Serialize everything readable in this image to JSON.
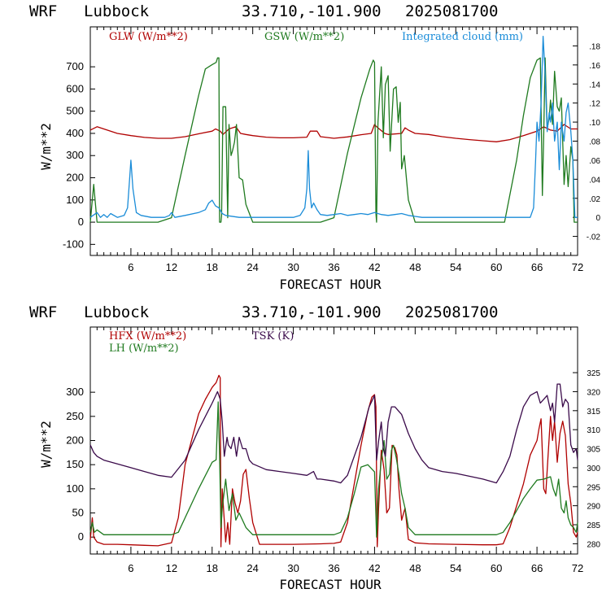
{
  "header": {
    "model": "WRF",
    "location": "Lubbock",
    "coords": "33.710,-101.900",
    "init": "2025081700"
  },
  "chart_data": [
    {
      "type": "line",
      "xlabel": "FORECAST HOUR",
      "ylabel": "W/m**2",
      "xlim": [
        0,
        72
      ],
      "ylim": [
        -150,
        880
      ],
      "x_ticks": [
        6,
        12,
        18,
        24,
        30,
        36,
        42,
        48,
        54,
        60,
        66,
        72
      ],
      "x_tick_labels": [
        "6",
        "12",
        "18",
        "24",
        "30",
        "36",
        "42",
        "48",
        "54",
        "60",
        "66",
        "72"
      ],
      "y_ticks": [
        -100,
        0,
        100,
        200,
        300,
        400,
        500,
        600,
        700
      ],
      "y_tick_labels": [
        "-100",
        "0",
        "100",
        "200",
        "300",
        "400",
        "500",
        "600",
        "700"
      ],
      "y2lim": [
        -0.04,
        0.2
      ],
      "y2_ticks": [
        -0.02,
        0,
        0.02,
        0.04,
        0.06,
        0.08,
        0.1,
        0.12,
        0.14,
        0.16,
        0.18
      ],
      "y2_tick_labels": [
        "-.02",
        "0",
        ".02",
        ".04",
        ".06",
        ".08",
        ".10",
        ".12",
        ".14",
        ".16",
        ".18"
      ],
      "grid": false,
      "legend_position": "top",
      "series": [
        {
          "name": "GLW (W/m**2)",
          "color": "#b00000",
          "axis": "left",
          "x": [
            0,
            1,
            2,
            4,
            6,
            8,
            10,
            12,
            14,
            16,
            18,
            18.5,
            19.2,
            19.6,
            20.5,
            21.5,
            22.2,
            23,
            24,
            26,
            28,
            30,
            32,
            32.5,
            33.5,
            34,
            36,
            38,
            40,
            41.5,
            42,
            42.3,
            43.5,
            44,
            46,
            46.5,
            47,
            48,
            50,
            52,
            54,
            56,
            58,
            60,
            62,
            64,
            66,
            67,
            68,
            69,
            70,
            71,
            72
          ],
          "y": [
            415,
            430,
            420,
            400,
            390,
            382,
            378,
            378,
            385,
            398,
            410,
            420,
            410,
            395,
            420,
            430,
            400,
            395,
            390,
            383,
            380,
            380,
            383,
            410,
            410,
            385,
            378,
            384,
            394,
            400,
            440,
            430,
            400,
            395,
            400,
            425,
            415,
            400,
            395,
            385,
            378,
            372,
            367,
            362,
            372,
            390,
            410,
            430,
            415,
            410,
            440,
            420,
            420
          ]
        },
        {
          "name": "GSW (W/m**2)",
          "color": "#1f7a1f",
          "axis": "left",
          "x": [
            0,
            0.5,
            1,
            6,
            7.4,
            10,
            12,
            14,
            16,
            17,
            18,
            18.6,
            18.8,
            19.0,
            19.1,
            19.3,
            19.4,
            19.6,
            20,
            20.3,
            20.5,
            20.8,
            21.0,
            21.3,
            21.6,
            22.0,
            22.5,
            23.0,
            24.0,
            24.5,
            30,
            31.6,
            34,
            36,
            38,
            40,
            41.3,
            41.8,
            42.0,
            42.2,
            42.3,
            42.5,
            43.0,
            43.3,
            43.6,
            44,
            44.3,
            44.8,
            45.2,
            45.5,
            45.8,
            46.0,
            46.4,
            47,
            48,
            49,
            49.5,
            55,
            60,
            61.2,
            63,
            64,
            65,
            66,
            66.5,
            66.8,
            67.0,
            67.2,
            67.5,
            67.8,
            68.0,
            68.3,
            68.6,
            69.0,
            69.3,
            69.6,
            70.0,
            70.3,
            70.6,
            71.0,
            71.3,
            71.5,
            71.8,
            72
          ],
          "y": [
            0,
            170,
            0,
            0,
            0,
            0,
            20,
            300,
            570,
            690,
            710,
            720,
            740,
            740,
            0,
            0,
            30,
            520,
            520,
            20,
            440,
            300,
            320,
            360,
            440,
            200,
            190,
            80,
            0,
            0,
            0,
            0,
            0,
            20,
            310,
            560,
            690,
            730,
            720,
            40,
            0,
            450,
            700,
            380,
            620,
            660,
            320,
            600,
            610,
            450,
            540,
            240,
            300,
            100,
            0,
            0,
            0,
            0,
            0,
            0,
            280,
            480,
            650,
            730,
            740,
            120,
            400,
            740,
            420,
            470,
            550,
            440,
            680,
            520,
            500,
            560,
            170,
            300,
            160,
            340,
            280,
            0,
            0,
            0
          ]
        },
        {
          "name": "Integrated cloud (mm)",
          "color": "#1a8cd8",
          "axis": "right",
          "x": [
            0,
            1,
            1.5,
            2,
            2.5,
            3,
            4,
            5,
            5.5,
            5.8,
            6.0,
            6.3,
            6.8,
            7.5,
            9,
            11,
            11.7,
            12,
            12.5,
            14,
            16,
            17,
            17.5,
            18,
            18.5,
            19,
            19.5,
            20,
            22,
            24,
            26,
            28,
            30,
            31,
            31.7,
            32.0,
            32.2,
            32.4,
            32.7,
            33,
            33.5,
            34,
            35,
            36,
            37,
            38,
            39,
            40,
            41,
            42,
            43,
            44,
            45,
            46,
            47,
            48,
            49,
            50,
            54,
            58,
            62,
            65,
            65.5,
            65.8,
            66.0,
            66.3,
            66.6,
            66.9,
            67.2,
            67.5,
            67.8,
            68.0,
            68.3,
            68.6,
            69.0,
            69.3,
            69.6,
            70.0,
            70.3,
            70.6,
            71.0,
            71.3,
            71.6,
            72
          ],
          "y": [
            0,
            0.005,
            0,
            0.003,
            0,
            0.004,
            0,
            0.002,
            0.01,
            0.04,
            0.06,
            0.03,
            0.005,
            0.002,
            0,
            0,
            0.002,
            0.005,
            0,
            0.002,
            0.005,
            0.008,
            0.015,
            0.018,
            0.012,
            0.01,
            0.004,
            0.002,
            0,
            0,
            0,
            0,
            0,
            0.002,
            0.01,
            0.03,
            0.07,
            0.03,
            0.01,
            0.015,
            0.008,
            0.003,
            0.002,
            0.003,
            0.004,
            0.002,
            0.003,
            0.004,
            0.003,
            0.005,
            0.003,
            0.002,
            0.003,
            0.004,
            0.002,
            0.001,
            0,
            0,
            0,
            0,
            0,
            0,
            0.01,
            0.06,
            0.1,
            0.08,
            0.12,
            0.19,
            0.15,
            0.09,
            0.11,
            0.1,
            0.12,
            0.08,
            0.1,
            0.05,
            0.1,
            0.08,
            0.11,
            0.12,
            0.09,
            0.06,
            0,
            0
          ]
        }
      ]
    },
    {
      "type": "line",
      "xlabel": "FORECAST HOUR",
      "ylabel": "W/m**2",
      "xlim": [
        0,
        72
      ],
      "ylim": [
        -35,
        435
      ],
      "x_ticks": [
        6,
        12,
        18,
        24,
        30,
        36,
        42,
        48,
        54,
        60,
        66,
        72
      ],
      "x_tick_labels": [
        "6",
        "12",
        "18",
        "24",
        "30",
        "36",
        "42",
        "48",
        "54",
        "60",
        "66",
        "72"
      ],
      "y_ticks": [
        0,
        50,
        100,
        150,
        200,
        250,
        300
      ],
      "y_tick_labels": [
        "0",
        "50",
        "100",
        "150",
        "200",
        "250",
        "300"
      ],
      "y2lim": [
        277.3,
        337
      ],
      "y2_ticks": [
        280,
        285,
        290,
        295,
        300,
        305,
        310,
        315,
        320,
        325
      ],
      "y2_tick_labels": [
        "280",
        "285",
        "290",
        "295",
        "300",
        "305",
        "310",
        "315",
        "320",
        "325"
      ],
      "grid": false,
      "legend_position": "top-left",
      "series": [
        {
          "name": "HFX (W/m**2)",
          "color": "#b00000",
          "axis": "left",
          "x": [
            0,
            0.3,
            0.5,
            1,
            2,
            4,
            6,
            8,
            10,
            12,
            13,
            14,
            16,
            17,
            18,
            18.6,
            19.0,
            19.2,
            19.3,
            19.5,
            20,
            20.3,
            20.6,
            21.0,
            21.4,
            21.8,
            22.2,
            22.6,
            23.0,
            23.5,
            24.0,
            25,
            30,
            34,
            36,
            37,
            38,
            40,
            41,
            41.6,
            42.0,
            42.2,
            42.4,
            42.6,
            43.0,
            43.4,
            43.8,
            44.2,
            44.6,
            45.0,
            45.3,
            45.6,
            46.0,
            46.5,
            47,
            48,
            49,
            50,
            54,
            58,
            60,
            61,
            62,
            64,
            65,
            66,
            66.3,
            66.6,
            67.0,
            67.3,
            67.6,
            68.0,
            68.3,
            68.6,
            69.0,
            69.4,
            69.8,
            70.2,
            70.6,
            71.0,
            71.4,
            71.8,
            72
          ],
          "y": [
            -5,
            40,
            0,
            -10,
            -15,
            -15,
            -16,
            -17,
            -18,
            -12,
            40,
            150,
            255,
            285,
            310,
            320,
            335,
            330,
            -20,
            100,
            -10,
            30,
            -15,
            100,
            70,
            50,
            75,
            130,
            140,
            80,
            30,
            -15,
            -15,
            -14,
            -13,
            -10,
            30,
            190,
            260,
            290,
            295,
            270,
            -20,
            60,
            180,
            140,
            50,
            60,
            190,
            185,
            170,
            100,
            35,
            60,
            -5,
            -12,
            -13,
            -14,
            -15,
            -16,
            -16,
            -14,
            20,
            110,
            170,
            200,
            225,
            245,
            100,
            90,
            160,
            250,
            200,
            240,
            155,
            215,
            240,
            210,
            110,
            70,
            10,
            0,
            10
          ]
        },
        {
          "name": "LH (W/m**2)",
          "color": "#1f7a1f",
          "axis": "left",
          "x": [
            0,
            0.3,
            0.6,
            1,
            2,
            4,
            6,
            8,
            10,
            12,
            13,
            14,
            16,
            18,
            18.6,
            18.9,
            19.1,
            19.3,
            19.5,
            20,
            20.5,
            21.0,
            21.5,
            22.0,
            23.0,
            24,
            25,
            30,
            34,
            36,
            37,
            38,
            39,
            40,
            41,
            42.0,
            42.3,
            42.6,
            43.0,
            43.4,
            43.8,
            44.2,
            44.5,
            44.8,
            45.2,
            45.6,
            46.0,
            46.5,
            47,
            48,
            49,
            54,
            58,
            60,
            61,
            62,
            63,
            64,
            65,
            66,
            67,
            68,
            68.4,
            68.8,
            69.2,
            69.6,
            70.0,
            70.3,
            70.6,
            71.0,
            71.4,
            71.8,
            72
          ],
          "y": [
            10,
            30,
            10,
            15,
            5,
            5,
            5,
            5,
            5,
            5,
            10,
            40,
            100,
            155,
            160,
            280,
            170,
            20,
            60,
            120,
            55,
            90,
            35,
            50,
            20,
            5,
            5,
            5,
            5,
            5,
            10,
            40,
            90,
            145,
            150,
            135,
            0,
            100,
            160,
            200,
            120,
            130,
            180,
            190,
            165,
            130,
            90,
            60,
            20,
            5,
            5,
            5,
            5,
            5,
            10,
            30,
            55,
            80,
            100,
            118,
            120,
            125,
            100,
            85,
            120,
            60,
            50,
            75,
            40,
            25,
            20,
            10,
            30
          ]
        },
        {
          "name": "TSK (K)",
          "color": "#3a0a4a",
          "axis": "right",
          "x": [
            0,
            0.5,
            1,
            2,
            4,
            6,
            8,
            10,
            12,
            14,
            16,
            18,
            18.8,
            19.2,
            19.5,
            19.8,
            20.2,
            20.4,
            20.8,
            21.2,
            21.6,
            22.0,
            22.5,
            23.0,
            23.5,
            24.0,
            26,
            28,
            30,
            32,
            33,
            33.5,
            34,
            36,
            37,
            38,
            40,
            41.2,
            42.0,
            42.3,
            42.6,
            43.0,
            43.3,
            43.6,
            44.0,
            44.5,
            45.0,
            46,
            47,
            48,
            49,
            50,
            52,
            54,
            58,
            60,
            61,
            62,
            63,
            64,
            65,
            66,
            66.5,
            67,
            67.5,
            68.0,
            68.3,
            68.6,
            69.0,
            69.4,
            69.8,
            70.2,
            70.6,
            71.0,
            71.4,
            71.8,
            72
          ],
          "y": [
            306,
            304,
            303,
            302,
            301,
            300,
            299,
            298,
            297.5,
            302,
            310,
            317,
            320,
            318,
            312,
            303,
            308,
            306,
            305,
            308,
            303,
            308,
            305,
            305,
            302,
            301,
            299.5,
            299,
            298.5,
            298,
            299,
            297,
            297,
            296.5,
            296,
            298,
            308,
            316,
            319,
            302,
            307,
            312,
            305,
            303,
            312,
            316,
            316,
            314,
            309,
            305,
            302,
            300,
            299,
            298.5,
            297,
            296,
            299,
            303,
            310,
            316,
            319,
            320,
            317,
            318,
            319,
            315,
            317,
            312,
            322,
            322,
            316,
            318,
            317,
            306,
            304,
            305,
            302
          ]
        }
      ]
    }
  ]
}
